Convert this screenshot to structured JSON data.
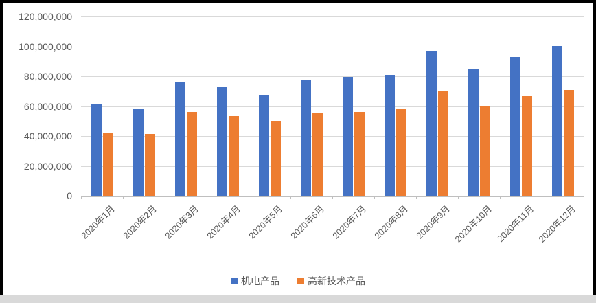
{
  "chart_data": {
    "type": "bar",
    "title": "",
    "xlabel": "",
    "ylabel": "",
    "categories": [
      "2020年1月",
      "2020年2月",
      "2020年3月",
      "2020年4月",
      "2020年5月",
      "2020年6月",
      "2020年7月",
      "2020年8月",
      "2020年9月",
      "2020年10月",
      "2020年11月",
      "2020年12月"
    ],
    "series": [
      {
        "name": "机电产品",
        "color": "#4472C4",
        "values": [
          61000000,
          58000000,
          76500000,
          73000000,
          67500000,
          77500000,
          79500000,
          81000000,
          97000000,
          85000000,
          93000000,
          100000000
        ]
      },
      {
        "name": "高新技术产品",
        "color": "#ED7D31",
        "values": [
          42500000,
          41500000,
          56000000,
          53500000,
          50000000,
          55500000,
          56000000,
          58500000,
          70500000,
          60000000,
          66500000,
          71000000
        ]
      }
    ],
    "ylim": [
      0,
      120000000
    ],
    "ytick_interval": 20000000,
    "ytick_labels": [
      "0",
      "20,000,000",
      "40,000,000",
      "60,000,000",
      "80,000,000",
      "100,000,000",
      "120,000,000"
    ],
    "grid": true,
    "legend_position": "bottom"
  },
  "colors": {
    "gridline": "#d9d9d9",
    "axis_line": "#bfbfbf",
    "label_text": "#595959",
    "background": "#ffffff",
    "frame": "#000000",
    "bottom_strip": "#d9d9d9"
  }
}
